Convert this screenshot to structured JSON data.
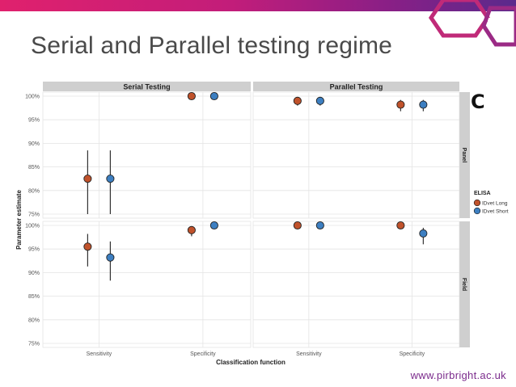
{
  "slide": {
    "title": "Serial and Parallel testing regime",
    "footer_url": "www.pirbright.ac.uk",
    "panel_letter": "C"
  },
  "colors": {
    "long": "#c0522b",
    "short": "#3d7fc1",
    "strip": "#cfcfcf",
    "grid": "#e4e4e4"
  },
  "chart_data": {
    "type": "scatter",
    "title": "",
    "xlabel": "Classification function",
    "ylabel": "Parameter estimate",
    "columns": [
      "Serial Testing",
      "Parallel Testing"
    ],
    "rows": [
      "Panel",
      "Field"
    ],
    "categories": [
      "Sensitivity",
      "Specificity"
    ],
    "ylim": [
      75,
      100
    ],
    "yticks": [
      75,
      80,
      85,
      90,
      95,
      100
    ],
    "ytick_labels": [
      "75%",
      "80%",
      "85%",
      "90%",
      "95%",
      "100%"
    ],
    "legend": {
      "title": "ELISA",
      "placement": "right",
      "entries": [
        {
          "name": "IDvet Long",
          "key": "long"
        },
        {
          "name": "IDvet Short",
          "key": "short"
        }
      ]
    },
    "facets": [
      {
        "column": "Serial Testing",
        "row": "Panel",
        "points": [
          {
            "category": "Sensitivity",
            "series": "long",
            "value": 82.5,
            "lower": 75.0,
            "upper": 88.5
          },
          {
            "category": "Sensitivity",
            "series": "short",
            "value": 82.5,
            "lower": 75.0,
            "upper": 88.5
          },
          {
            "category": "Specificity",
            "series": "long",
            "value": 100.0,
            "lower": 100.0,
            "upper": 100.0
          },
          {
            "category": "Specificity",
            "series": "short",
            "value": 100.0,
            "lower": 100.0,
            "upper": 100.0
          }
        ]
      },
      {
        "column": "Parallel Testing",
        "row": "Panel",
        "points": [
          {
            "category": "Sensitivity",
            "series": "long",
            "value": 99.0,
            "lower": 98.0,
            "upper": 99.6
          },
          {
            "category": "Sensitivity",
            "series": "short",
            "value": 99.0,
            "lower": 98.0,
            "upper": 99.6
          },
          {
            "category": "Specificity",
            "series": "long",
            "value": 98.2,
            "lower": 96.8,
            "upper": 99.2
          },
          {
            "category": "Specificity",
            "series": "short",
            "value": 98.2,
            "lower": 96.8,
            "upper": 99.2
          }
        ]
      },
      {
        "column": "Serial Testing",
        "row": "Field",
        "points": [
          {
            "category": "Sensitivity",
            "series": "long",
            "value": 95.5,
            "lower": 91.3,
            "upper": 98.2
          },
          {
            "category": "Sensitivity",
            "series": "short",
            "value": 93.2,
            "lower": 88.3,
            "upper": 96.6
          },
          {
            "category": "Specificity",
            "series": "long",
            "value": 99.0,
            "lower": 97.7,
            "upper": 99.6
          },
          {
            "category": "Specificity",
            "series": "short",
            "value": 100.0,
            "lower": 100.0,
            "upper": 100.0
          }
        ]
      },
      {
        "column": "Parallel Testing",
        "row": "Field",
        "points": [
          {
            "category": "Sensitivity",
            "series": "long",
            "value": 100.0,
            "lower": 100.0,
            "upper": 100.0
          },
          {
            "category": "Sensitivity",
            "series": "short",
            "value": 100.0,
            "lower": 100.0,
            "upper": 100.0
          },
          {
            "category": "Specificity",
            "series": "long",
            "value": 100.0,
            "lower": 100.0,
            "upper": 100.0
          },
          {
            "category": "Specificity",
            "series": "short",
            "value": 98.3,
            "lower": 96.0,
            "upper": 99.5
          }
        ]
      }
    ]
  }
}
